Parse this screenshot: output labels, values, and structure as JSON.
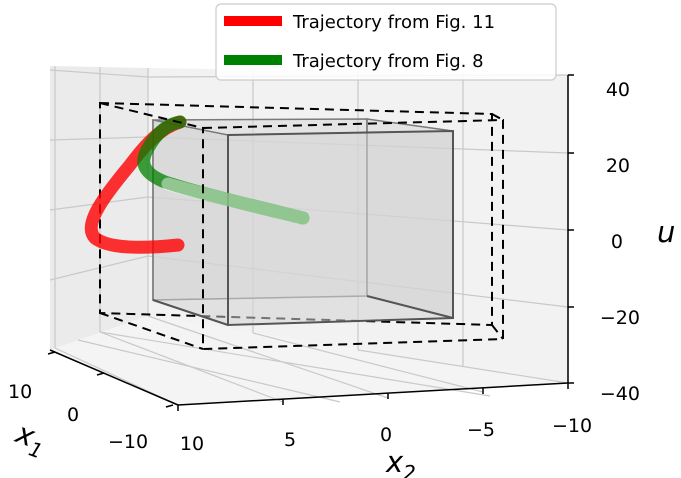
{
  "chart_data": {
    "type": "3d-line",
    "axes": {
      "x1": {
        "label": "x",
        "subscript": "1",
        "ticks": [
          10,
          0,
          -10
        ],
        "tick_labels": [
          "10",
          "0",
          "−10"
        ]
      },
      "x2": {
        "label": "x",
        "subscript": "2",
        "ticks": [
          10,
          5,
          0,
          -5,
          -10
        ],
        "tick_labels": [
          "10",
          "5",
          "0",
          "−5",
          "−10"
        ]
      },
      "u": {
        "label": "u",
        "ticks": [
          40,
          20,
          0,
          -20,
          -40
        ],
        "tick_labels": [
          "40",
          "20",
          "0",
          "−20",
          "−40"
        ]
      }
    },
    "grid": true,
    "legend": {
      "placement": "top-right"
    },
    "series": [
      {
        "name": "Trajectory from Fig. 11",
        "color": "#ff0000",
        "style": "thick line"
      },
      {
        "name": "Trajectory from Fig. 8",
        "color": "#008000",
        "style": "thick line"
      }
    ],
    "boxes": [
      {
        "kind": "solid shaded box",
        "edge_color": "#555555",
        "fill": "#d9d9d9"
      },
      {
        "kind": "dashed box",
        "edge_color": "#000000"
      }
    ]
  }
}
